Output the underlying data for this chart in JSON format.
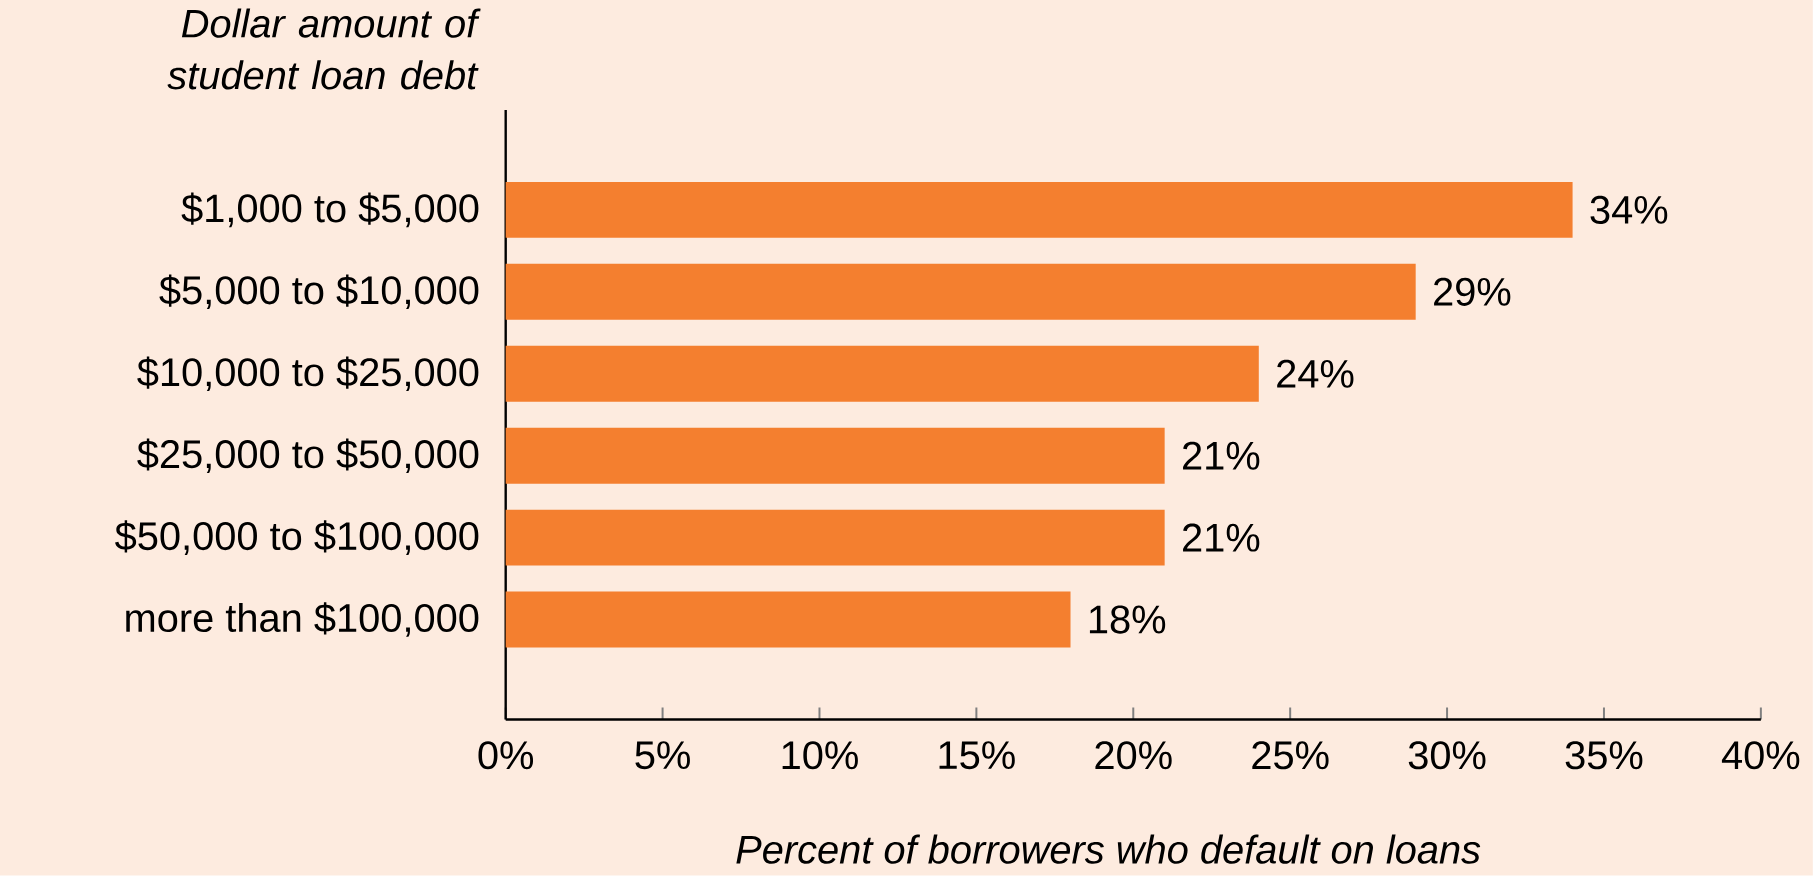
{
  "chart_data": {
    "type": "bar",
    "orientation": "horizontal",
    "ylabel": "Dollar amount of student loan debt",
    "xlabel": "Percent of borrowers who default on loans",
    "categories": [
      "$1,000 to $5,000",
      "$5,000 to $10,000",
      "$10,000 to $25,000",
      "$25,000 to $50,000",
      "$50,000 to $100,000",
      "more than $100,000"
    ],
    "values": [
      34,
      29,
      24,
      21,
      21,
      18
    ],
    "value_labels": [
      "34%",
      "29%",
      "24%",
      "21%",
      "21%",
      "18%"
    ],
    "color": "#f47f2f",
    "xlim": [
      0,
      40
    ],
    "xticks": [
      {
        "value": 0,
        "label": "0%"
      },
      {
        "value": 5,
        "label": "5%"
      },
      {
        "value": 10,
        "label": "10%"
      },
      {
        "value": 15,
        "label": "15%"
      },
      {
        "value": 20,
        "label": "20%"
      },
      {
        "value": 25,
        "label": "25%"
      },
      {
        "value": 30,
        "label": "30%"
      },
      {
        "value": 35,
        "label": "35%"
      },
      {
        "value": 40,
        "label": "40%"
      }
    ],
    "grid": false
  }
}
